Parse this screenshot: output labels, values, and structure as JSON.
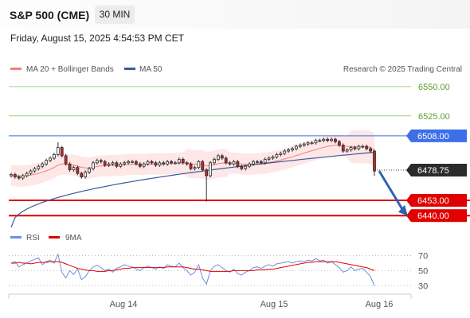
{
  "header": {
    "symbol": "S&P 500 (CME)",
    "timeframe": "30 MIN",
    "datetime": "Friday, August 15, 2025 4:54:53 PM CET"
  },
  "legend": {
    "ma20": "MA 20 + Bollinger Bands",
    "ma50": "MA 50",
    "credit": "Research © 2025 Trading Central",
    "rsi": "RSI",
    "ma9": "9MA"
  },
  "colors": {
    "ma20": "#f08080",
    "ma50": "#3a5a99",
    "band_fill": "#fde3e3",
    "up": "#ffffff",
    "down": "#c62828",
    "resistance_green": "#9ed47a",
    "pivot_blue": "#3d6fe8",
    "support_red": "#e00000",
    "arrow": "#2f63b4",
    "rsi_line": "#6d8fe0",
    "rsi_ma": "#e00000"
  },
  "chart_data": [
    {
      "type": "line",
      "title": "",
      "x": [
        "Aug 14",
        "Aug 15",
        "Aug 16"
      ],
      "ylim": [
        6432,
        6556
      ],
      "levels": [
        {
          "value": 6550.0,
          "label": "6550.00",
          "kind": "resistance"
        },
        {
          "value": 6525.0,
          "label": "6525.00",
          "kind": "resistance"
        },
        {
          "value": 6508.0,
          "label": "6508.00",
          "kind": "pivot"
        },
        {
          "value": 6478.75,
          "label": "6478.75",
          "kind": "last"
        },
        {
          "value": 6453.0,
          "label": "6453.00",
          "kind": "support"
        },
        {
          "value": 6440.0,
          "label": "6440.00",
          "kind": "support"
        }
      ],
      "closes": [
        6475,
        6473,
        6472,
        6474,
        6476,
        6478,
        6480,
        6482,
        6484,
        6487,
        6489,
        6492,
        6498,
        6491,
        6484,
        6479,
        6481,
        6476,
        6473,
        6477,
        6480,
        6485,
        6487,
        6486,
        6483,
        6484,
        6485,
        6482,
        6484,
        6485,
        6486,
        6486,
        6484,
        6482,
        6484,
        6486,
        6485,
        6483,
        6485,
        6484,
        6486,
        6485,
        6485,
        6488,
        6485,
        6484,
        6480,
        6481,
        6486,
        6479,
        6474,
        6485,
        6488,
        6491,
        6489,
        6485,
        6484,
        6486,
        6482,
        6480,
        6482,
        6484,
        6486,
        6486,
        6485,
        6488,
        6489,
        6490,
        6492,
        6493,
        6495,
        6496,
        6497,
        6499,
        6500,
        6501,
        6502,
        6502,
        6504,
        6504,
        6505,
        6504,
        6505,
        6503,
        6500,
        6495,
        6496,
        6498,
        6497,
        6499,
        6499,
        6497,
        6495,
        6478
      ],
      "ma20_start": 6474,
      "ma20_end": 6496,
      "ma50_start": 6430,
      "ma50_end": 6494
    },
    {
      "type": "line",
      "title": "",
      "series_names": [
        "RSI",
        "9MA"
      ],
      "ylim": [
        25,
        78
      ],
      "ticks": [
        70,
        50,
        30
      ],
      "rsi": [
        60,
        62,
        55,
        58,
        60,
        63,
        65,
        67,
        58,
        62,
        64,
        60,
        72,
        48,
        40,
        50,
        45,
        52,
        38,
        42,
        50,
        55,
        57,
        54,
        50,
        52,
        48,
        53,
        55,
        58,
        56,
        55,
        52,
        50,
        54,
        56,
        54,
        52,
        55,
        53,
        58,
        56,
        55,
        60,
        54,
        50,
        44,
        48,
        58,
        40,
        32,
        50,
        56,
        58,
        54,
        50,
        48,
        52,
        46,
        44,
        48,
        50,
        54,
        55,
        53,
        56,
        58,
        56,
        59,
        60,
        61,
        62,
        60,
        62,
        63,
        62,
        64,
        63,
        66,
        63,
        64,
        60,
        62,
        58,
        54,
        48,
        50,
        55,
        50,
        52,
        53,
        48,
        42,
        30
      ],
      "ma9": [
        60,
        60,
        61,
        60,
        60,
        59,
        60,
        61,
        61,
        61,
        62,
        62,
        62,
        61,
        59,
        57,
        55,
        53,
        52,
        51,
        50,
        50,
        49,
        49,
        49,
        50,
        50,
        51,
        52,
        53,
        53,
        54,
        54,
        54,
        54,
        54,
        54,
        54,
        54,
        54,
        55,
        55,
        55,
        55,
        55,
        54,
        53,
        52,
        52,
        51,
        50,
        49,
        49,
        49,
        49,
        49,
        49,
        50,
        50,
        50,
        50,
        50,
        50,
        51,
        51,
        51,
        52,
        52,
        53,
        54,
        55,
        56,
        57,
        58,
        59,
        60,
        61,
        61,
        62,
        62,
        62,
        62,
        62,
        62,
        61,
        60,
        59,
        58,
        57,
        56,
        55,
        54,
        52,
        50
      ]
    }
  ]
}
